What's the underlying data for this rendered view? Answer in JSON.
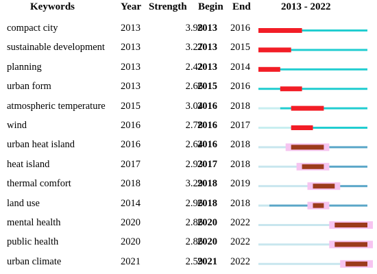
{
  "headers": {
    "keyword": "Keywords",
    "year": "Year",
    "strength": "Strength",
    "begin": "Begin",
    "end": "End",
    "range": "2013 - 2022"
  },
  "chart_data": {
    "type": "table",
    "timeline_start": 2013,
    "timeline_end": 2022,
    "rows": [
      {
        "keyword": "compact city",
        "year": "2013",
        "strength": "3.98",
        "begin": "2013",
        "end": "2016",
        "band": "light"
      },
      {
        "keyword": "sustainable development",
        "year": "2013",
        "strength": "3.27",
        "begin": "2013",
        "end": "2015",
        "band": "light"
      },
      {
        "keyword": "planning",
        "year": "2013",
        "strength": "2.42",
        "begin": "2013",
        "end": "2014",
        "band": "light"
      },
      {
        "keyword": "urban form",
        "year": "2013",
        "strength": "2.66",
        "begin": "2015",
        "end": "2016",
        "band": "light"
      },
      {
        "keyword": "atmospheric temperature",
        "year": "2015",
        "strength": "3.04",
        "begin": "2016",
        "end": "2018",
        "band": "light"
      },
      {
        "keyword": "wind",
        "year": "2016",
        "strength": "2.78",
        "begin": "2016",
        "end": "2017",
        "band": "light"
      },
      {
        "keyword": "urban heat island",
        "year": "2016",
        "strength": "2.64",
        "begin": "2016",
        "end": "2018",
        "band": "dark"
      },
      {
        "keyword": "heat island",
        "year": "2017",
        "strength": "2.93",
        "begin": "2017",
        "end": "2018",
        "band": "dark"
      },
      {
        "keyword": "thermal comfort",
        "year": "2018",
        "strength": "3.29",
        "begin": "2018",
        "end": "2019",
        "band": "dark"
      },
      {
        "keyword": "land use",
        "year": "2014",
        "strength": "2.96",
        "begin": "2018",
        "end": "2018",
        "band": "dark"
      },
      {
        "keyword": "mental health",
        "year": "2020",
        "strength": "2.86",
        "begin": "2020",
        "end": "2022",
        "band": "dark"
      },
      {
        "keyword": "public health",
        "year": "2020",
        "strength": "2.86",
        "begin": "2020",
        "end": "2022",
        "band": "dark"
      },
      {
        "keyword": "urban climate",
        "year": "2021",
        "strength": "2.59",
        "begin": "2021",
        "end": "2022",
        "band": "dark"
      }
    ]
  },
  "colors": {
    "light_line": "#21cdd0",
    "light_pre": "#c8eef0",
    "light_burst": "#f21d26",
    "dark_line": "#5aa6c8",
    "dark_pre": "#c8e6ee",
    "dark_burst": "#9c3b1c",
    "dark_glow": "#f6c4f0"
  }
}
